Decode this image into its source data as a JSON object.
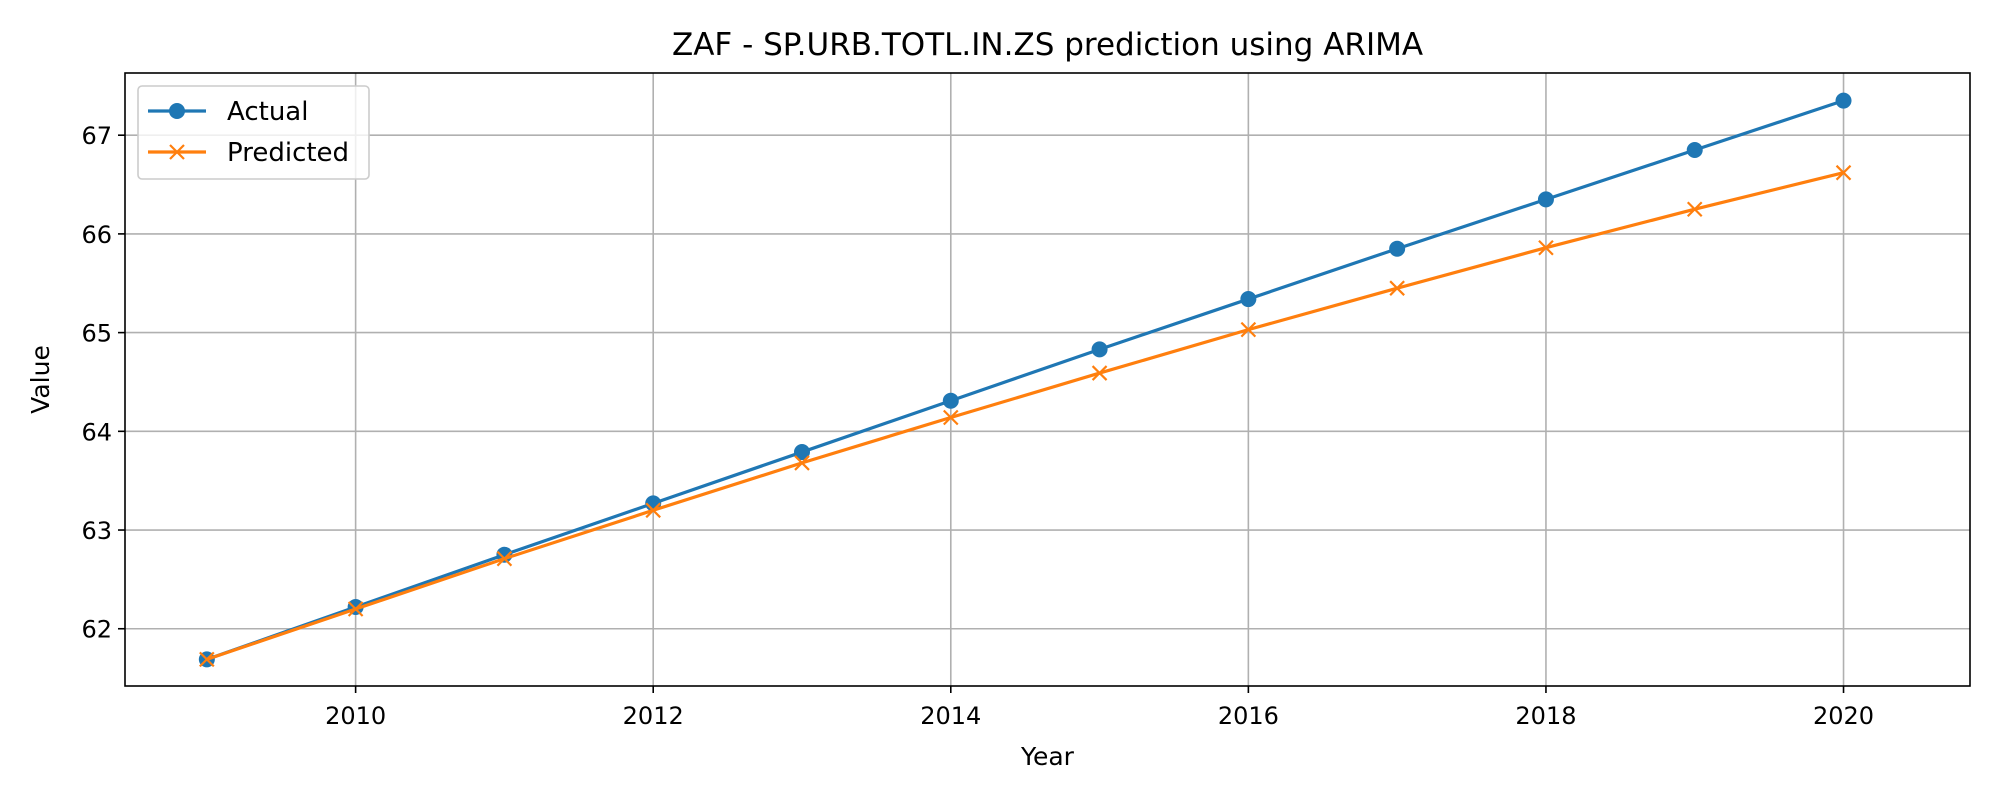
{
  "chart_data": {
    "type": "line",
    "title": "ZAF - SP.URB.TOTL.IN.ZS prediction using ARIMA",
    "xlabel": "Year",
    "ylabel": "Value",
    "x": [
      2009,
      2010,
      2011,
      2012,
      2013,
      2014,
      2015,
      2016,
      2017,
      2018,
      2019,
      2020
    ],
    "xlim": [
      2008.45,
      2020.85
    ],
    "ylim": [
      61.42,
      67.63
    ],
    "xticks": [
      2010,
      2012,
      2014,
      2016,
      2018,
      2020
    ],
    "yticks": [
      62,
      63,
      64,
      65,
      66,
      67
    ],
    "grid": true,
    "legend_position": "upper-left",
    "series": [
      {
        "name": "Actual",
        "color": "#1f77b4",
        "marker": "circle",
        "values": [
          61.69,
          62.22,
          62.75,
          63.27,
          63.79,
          64.31,
          64.83,
          65.34,
          65.85,
          66.35,
          66.85,
          67.35
        ]
      },
      {
        "name": "Predicted",
        "color": "#ff7f0e",
        "marker": "x",
        "values": [
          61.69,
          62.2,
          62.71,
          63.2,
          63.68,
          64.14,
          64.59,
          65.03,
          65.45,
          65.86,
          66.25,
          66.62
        ]
      }
    ]
  }
}
